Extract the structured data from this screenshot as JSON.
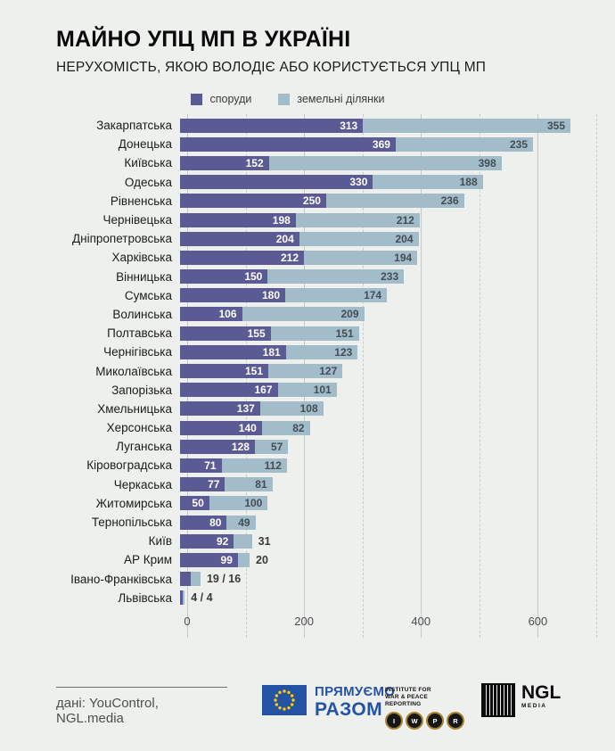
{
  "title": "МАЙНО УПЦ МП В УКРАЇНІ",
  "subtitle": "НЕРУХОМІСТЬ, ЯКОЮ ВОЛОДІЄ АБО КОРИСТУЄТЬСЯ УПЦ МП",
  "legend": {
    "items": [
      {
        "label": "споруди",
        "color": "#5a5a94"
      },
      {
        "label": "земельні ділянки",
        "color": "#a2bcc9"
      }
    ]
  },
  "chart_data": {
    "type": "bar",
    "orientation": "horizontal",
    "stacked": true,
    "categories": [
      "Закарпатська",
      "Донецька",
      "Київська",
      "Одеська",
      "Рівненська",
      "Чернівецька",
      "Дніпропетровська",
      "Харківська",
      "Вінницька",
      "Сумська",
      "Волинська",
      "Полтавська",
      "Чернігівська",
      "Миколаївська",
      "Запорізька",
      "Хмельницька",
      "Херсонська",
      "Луганська",
      "Кіровоградська",
      "Черкаська",
      "Житомирська",
      "Тернопільська",
      "Київ",
      "АР Крим",
      "Івано-Франківська",
      "Львівська"
    ],
    "series": [
      {
        "name": "споруди",
        "color": "#5a5a94",
        "label_color": "#ffffff",
        "values": [
          313,
          369,
          152,
          330,
          250,
          198,
          204,
          212,
          150,
          180,
          106,
          155,
          181,
          151,
          167,
          137,
          140,
          128,
          71,
          77,
          50,
          80,
          92,
          99,
          19,
          4
        ]
      },
      {
        "name": "земельні ділянки",
        "color": "#a2bcc9",
        "label_color": "#424d56",
        "values": [
          355,
          235,
          398,
          188,
          236,
          212,
          204,
          194,
          233,
          174,
          209,
          151,
          123,
          127,
          101,
          108,
          82,
          57,
          112,
          81,
          100,
          49,
          31,
          20,
          16,
          4
        ]
      }
    ],
    "xlim": [
      0,
      700
    ],
    "xticks": [
      0,
      200,
      400,
      600
    ],
    "gridlines": {
      "solid": [
        0,
        200,
        400,
        600
      ],
      "dashed": [
        100,
        300,
        500,
        700
      ]
    },
    "grid": true,
    "legend_position": "top",
    "combined_label_separator": " / "
  },
  "footer": {
    "source": "дані: YouControl, NGL.media",
    "eu": {
      "line1": "ПРЯМУЄМО",
      "line2": "РАЗОМ"
    },
    "iwpr": {
      "head1": "INSTITUTE FOR",
      "head2": "WAR & PEACE REPORTING",
      "letters": [
        "I",
        "W",
        "P",
        "R"
      ]
    },
    "ngl": {
      "name": "NGL",
      "sub": "MEDIA"
    }
  }
}
